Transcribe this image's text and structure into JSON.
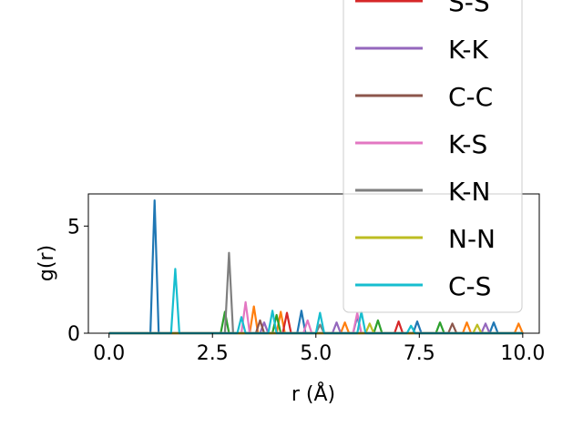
{
  "chart_data": {
    "type": "line",
    "title": "",
    "xlabel": "r (Å)",
    "ylabel": "g(r)",
    "xlim": [
      -0.5,
      10.4
    ],
    "ylim": [
      0,
      6.5
    ],
    "xticks": [
      0.0,
      2.5,
      5.0,
      7.5,
      10.0
    ],
    "xtick_labels": [
      "0.0",
      "2.5",
      "5.0",
      "7.5",
      "10.0"
    ],
    "yticks": [
      0,
      5
    ],
    "ytick_labels": [
      "0",
      "5"
    ],
    "legend_position": "upper-right (extends above axes)",
    "series": [
      {
        "name": "",
        "color": "#1f77b4",
        "peaks": [
          [
            1.0,
            0
          ],
          [
            1.1,
            6.2
          ],
          [
            1.2,
            0
          ],
          [
            4.55,
            0
          ],
          [
            4.65,
            1.05
          ],
          [
            4.75,
            0
          ],
          [
            5.9,
            0
          ],
          [
            6.0,
            0.8
          ],
          [
            6.1,
            0
          ],
          [
            7.35,
            0
          ],
          [
            7.45,
            0.55
          ],
          [
            7.55,
            0
          ],
          [
            9.2,
            0
          ],
          [
            9.3,
            0.5
          ],
          [
            9.4,
            0
          ]
        ]
      },
      {
        "name": "",
        "color": "#ff7f0e",
        "peaks": [
          [
            3.4,
            0
          ],
          [
            3.5,
            1.25
          ],
          [
            3.6,
            0
          ],
          [
            4.05,
            0
          ],
          [
            4.15,
            1.0
          ],
          [
            4.25,
            0
          ],
          [
            5.6,
            0
          ],
          [
            5.7,
            0.5
          ],
          [
            5.8,
            0
          ],
          [
            8.55,
            0
          ],
          [
            8.65,
            0.5
          ],
          [
            8.75,
            0
          ],
          [
            9.8,
            0
          ],
          [
            9.9,
            0.45
          ],
          [
            10.0,
            0
          ]
        ]
      },
      {
        "name": "",
        "color": "#2ca02c",
        "peaks": [
          [
            2.7,
            0
          ],
          [
            2.8,
            1.0
          ],
          [
            2.9,
            0
          ],
          [
            3.95,
            0
          ],
          [
            4.05,
            0.85
          ],
          [
            4.15,
            0
          ],
          [
            6.4,
            0
          ],
          [
            6.5,
            0.6
          ],
          [
            6.6,
            0
          ],
          [
            7.9,
            0
          ],
          [
            8.0,
            0.5
          ],
          [
            8.1,
            0
          ]
        ]
      },
      {
        "name": "S-S",
        "color": "#d62728",
        "peaks": [
          [
            4.2,
            0
          ],
          [
            4.3,
            0.95
          ],
          [
            4.4,
            0
          ],
          [
            6.9,
            0
          ],
          [
            7.0,
            0.55
          ],
          [
            7.1,
            0
          ]
        ]
      },
      {
        "name": "K-K",
        "color": "#9467bd",
        "peaks": [
          [
            3.65,
            0
          ],
          [
            3.75,
            0.5
          ],
          [
            3.85,
            0
          ],
          [
            5.4,
            0
          ],
          [
            5.5,
            0.5
          ],
          [
            5.6,
            0
          ],
          [
            9.0,
            0
          ],
          [
            9.1,
            0.45
          ],
          [
            9.2,
            0
          ]
        ]
      },
      {
        "name": "C-C",
        "color": "#8c564b",
        "peaks": [
          [
            3.55,
            0
          ],
          [
            3.65,
            0.6
          ],
          [
            3.75,
            0
          ],
          [
            8.2,
            0
          ],
          [
            8.3,
            0.45
          ],
          [
            8.4,
            0
          ]
        ]
      },
      {
        "name": "K-S",
        "color": "#e377c2",
        "peaks": [
          [
            3.2,
            0
          ],
          [
            3.3,
            1.45
          ],
          [
            3.4,
            0
          ],
          [
            4.7,
            0
          ],
          [
            4.8,
            0.6
          ],
          [
            4.9,
            0
          ],
          [
            5.9,
            0
          ],
          [
            6.0,
            0.95
          ],
          [
            6.1,
            0
          ]
        ]
      },
      {
        "name": "K-N",
        "color": "#7f7f7f",
        "peaks": [
          [
            2.8,
            0
          ],
          [
            2.9,
            3.75
          ],
          [
            3.0,
            0
          ],
          [
            5.0,
            0
          ],
          [
            5.1,
            0.4
          ],
          [
            5.2,
            0
          ]
        ]
      },
      {
        "name": "N-N",
        "color": "#bcbd22",
        "peaks": [
          [
            6.2,
            0
          ],
          [
            6.3,
            0.45
          ],
          [
            6.4,
            0
          ],
          [
            8.8,
            0
          ],
          [
            8.9,
            0.4
          ],
          [
            9.0,
            0
          ]
        ]
      },
      {
        "name": "C-S",
        "color": "#17becf",
        "peaks": [
          [
            1.5,
            0
          ],
          [
            1.6,
            3.0
          ],
          [
            1.7,
            0
          ],
          [
            3.1,
            0
          ],
          [
            3.2,
            0.75
          ],
          [
            3.3,
            0
          ],
          [
            3.85,
            0
          ],
          [
            3.95,
            1.05
          ],
          [
            4.05,
            0
          ],
          [
            5.0,
            0
          ],
          [
            5.1,
            0.95
          ],
          [
            5.2,
            0
          ],
          [
            6.0,
            0
          ],
          [
            6.1,
            1.0
          ],
          [
            6.2,
            0
          ],
          [
            7.2,
            0
          ],
          [
            7.3,
            0.35
          ],
          [
            7.4,
            0
          ]
        ]
      }
    ]
  }
}
